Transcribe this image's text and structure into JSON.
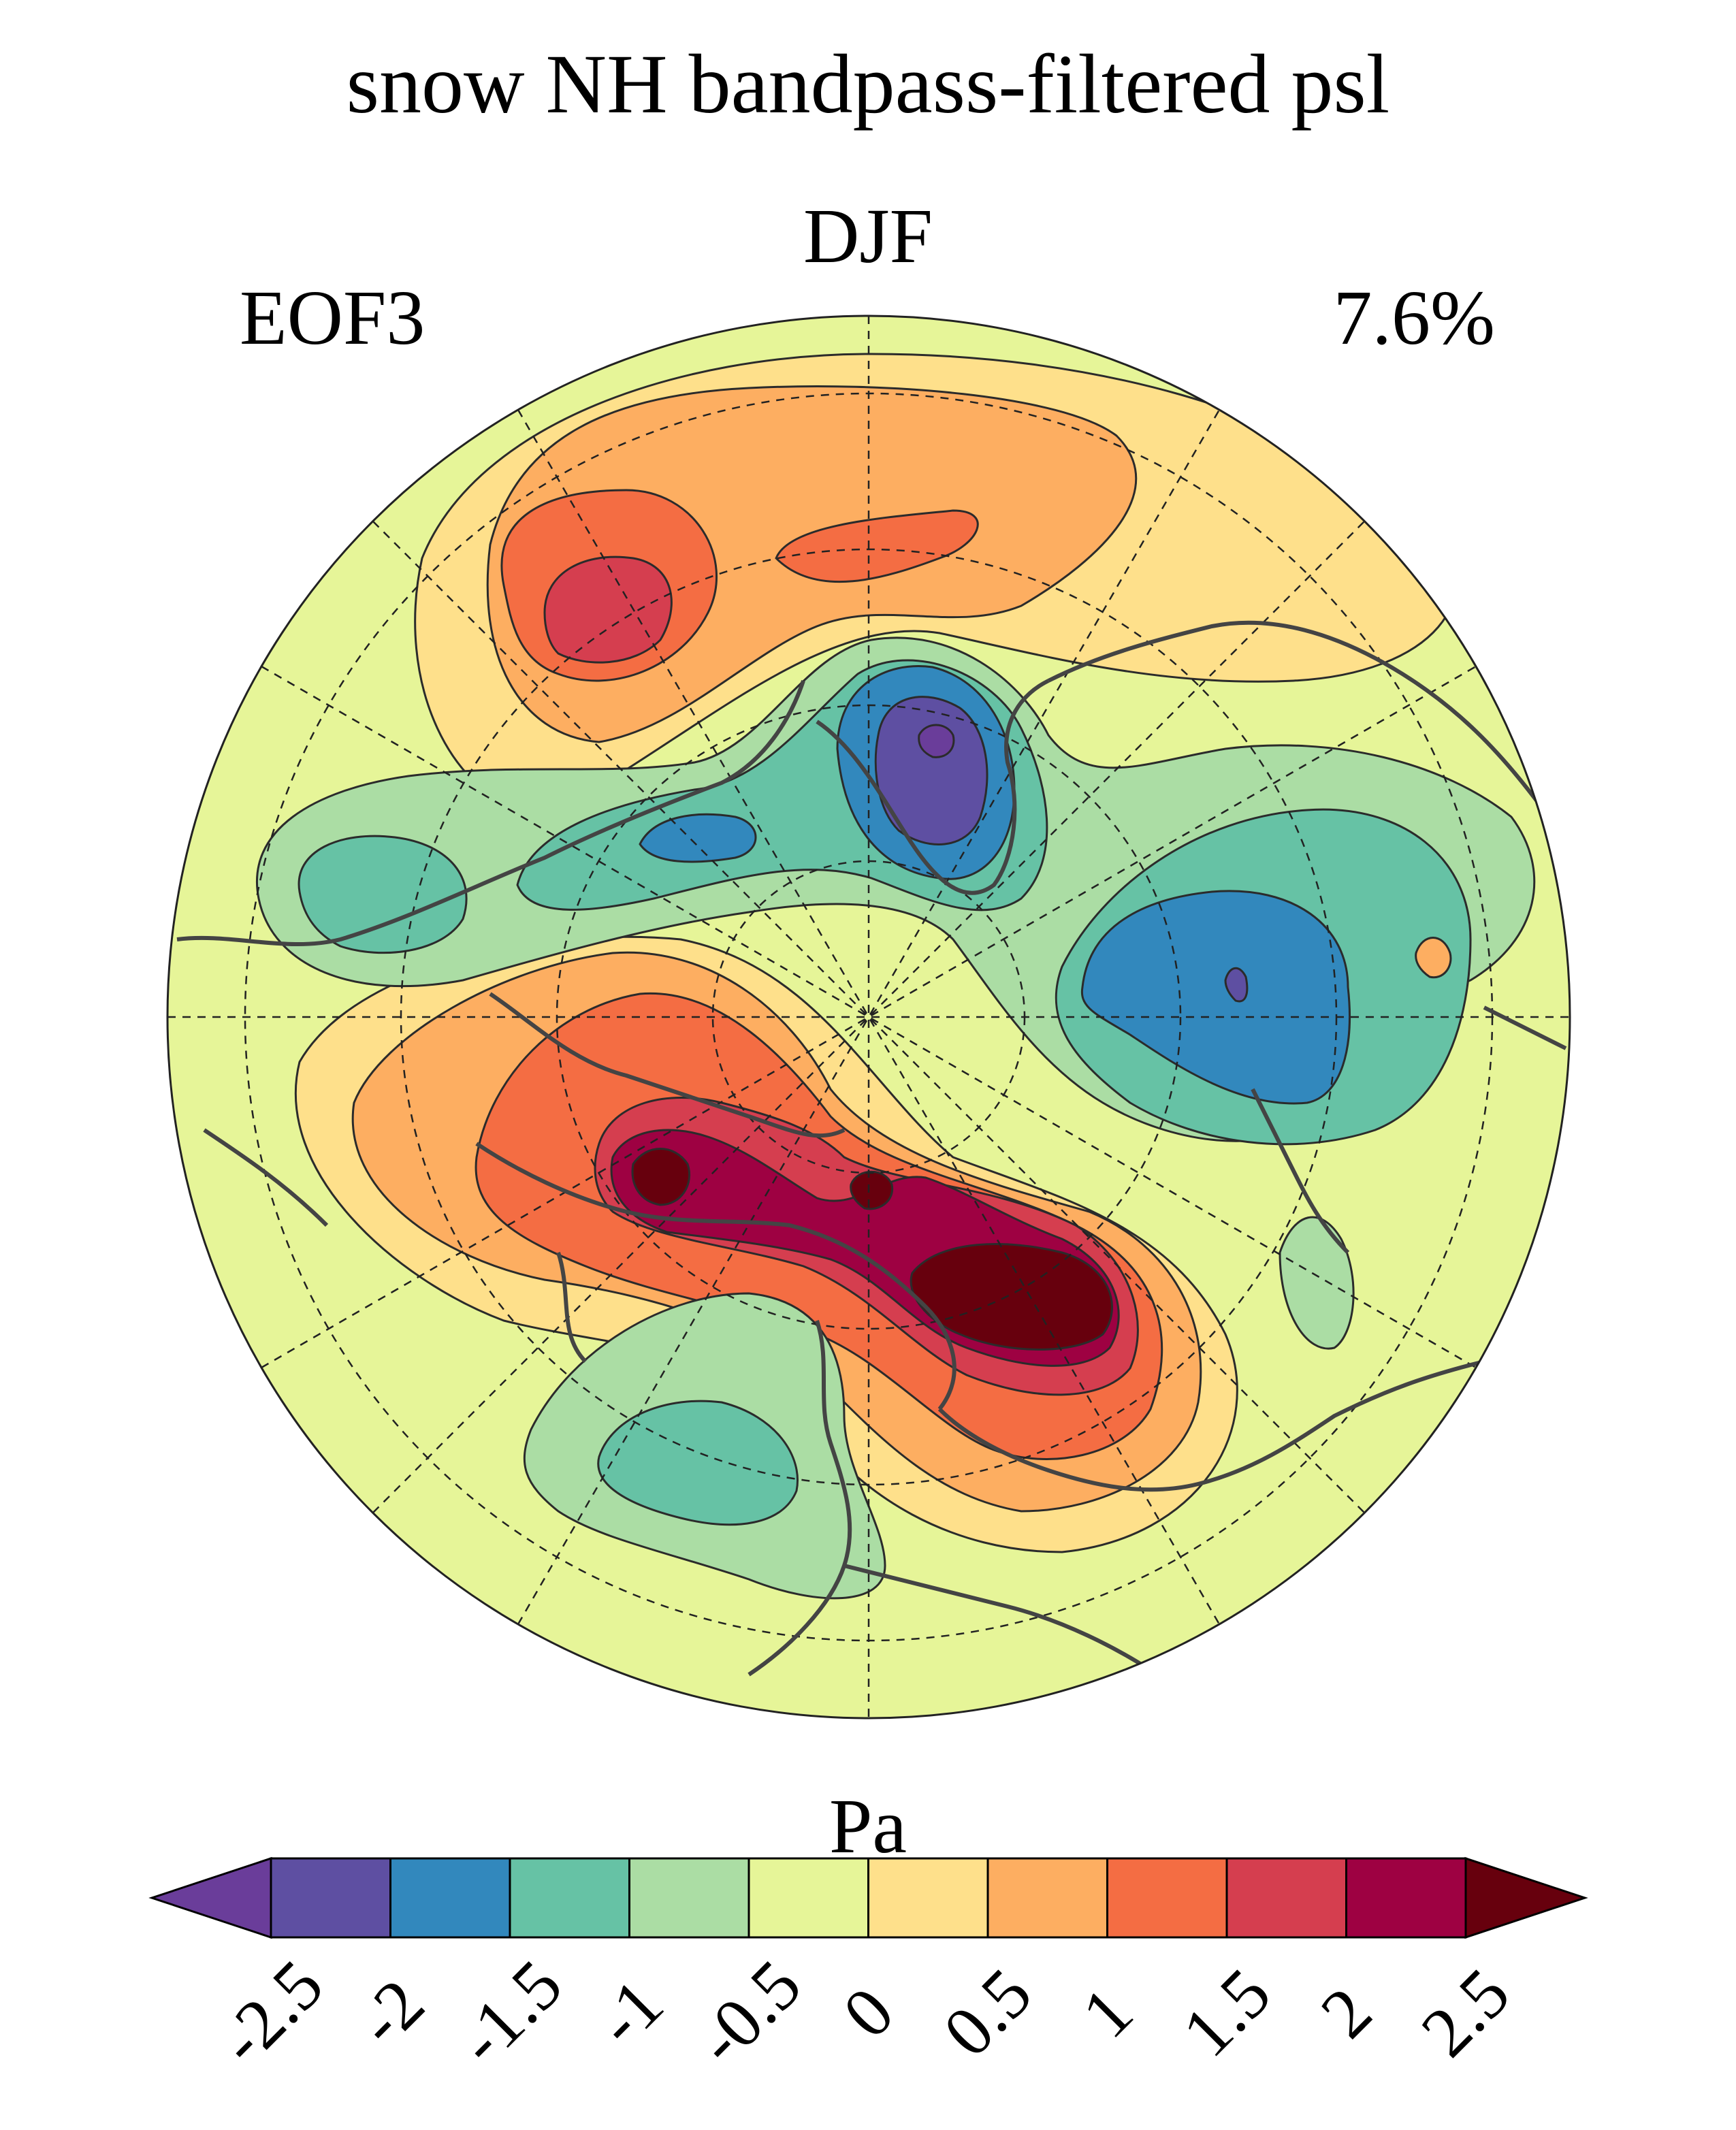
{
  "title": "snow NH bandpass-filtered psl",
  "season": "DJF",
  "mode_label": "EOF3",
  "variance_explained": "7.6%",
  "colorbar": {
    "unit": "Pa",
    "ticks": [
      "-2.5",
      "-2",
      "-1.5",
      "-1",
      "-0.5",
      "0",
      "0.5",
      "1",
      "1.5",
      "2",
      "2.5"
    ],
    "levels": [
      -2.5,
      -2,
      -1.5,
      -1,
      -0.5,
      0,
      0.5,
      1,
      1.5,
      2,
      2.5
    ],
    "colors": [
      "#6a3d9a",
      "#5e4fa2",
      "#3288bd",
      "#66c2a5",
      "#abdda4",
      "#e6f598",
      "#fee08b",
      "#fdae61",
      "#f46d43",
      "#d53e4f",
      "#9e0142",
      "#67000d"
    ]
  },
  "map": {
    "projection": "north-polar-stereographic",
    "background_color": "#e6f598",
    "contour_line_color": "#2b2b2b",
    "coast_color": "#444444"
  }
}
